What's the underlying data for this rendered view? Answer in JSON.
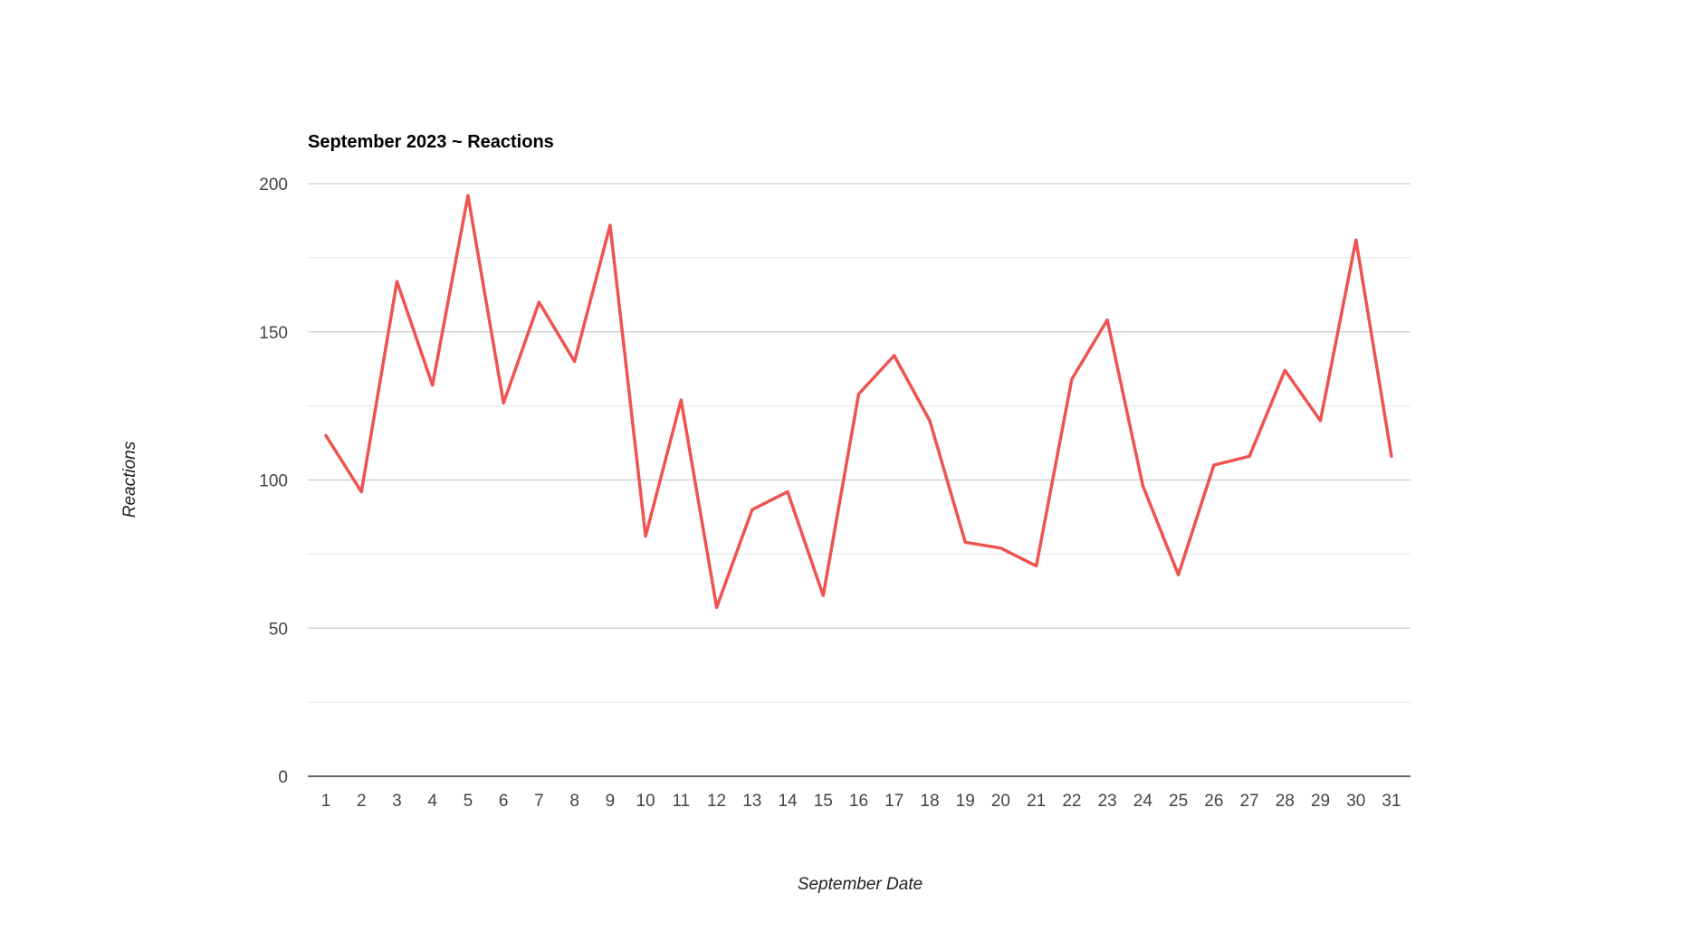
{
  "chart_data": {
    "type": "line",
    "title": "September 2023 ~ Reactions",
    "xlabel": "September Date",
    "ylabel": "Reactions",
    "categories": [
      "1",
      "2",
      "3",
      "4",
      "5",
      "6",
      "7",
      "8",
      "9",
      "10",
      "11",
      "12",
      "13",
      "14",
      "15",
      "16",
      "17",
      "18",
      "19",
      "20",
      "21",
      "22",
      "23",
      "24",
      "25",
      "26",
      "27",
      "28",
      "29",
      "30",
      "31"
    ],
    "series": [
      {
        "values": [
          115,
          96,
          167,
          132,
          196,
          126,
          160,
          140,
          186,
          81,
          127,
          57,
          90,
          96,
          61,
          129,
          142,
          120,
          79,
          77,
          71,
          134,
          154,
          98,
          68,
          105,
          108,
          137,
          120,
          181,
          108
        ],
        "color": "#ef5350"
      }
    ],
    "ylim": [
      0,
      200
    ],
    "yticks": [
      0,
      50,
      100,
      150,
      200
    ],
    "y_minor_step": 25,
    "grid": true,
    "legend": "none"
  }
}
